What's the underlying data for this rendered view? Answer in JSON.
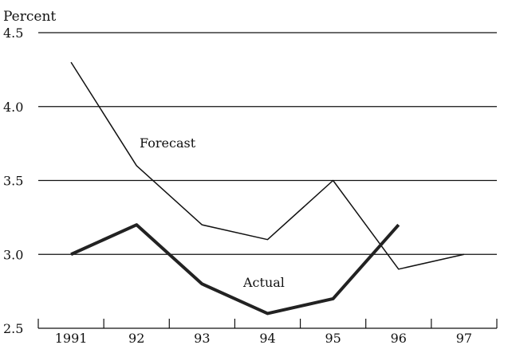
{
  "chart_data": {
    "type": "line",
    "ylabel": "Percent",
    "xlabel": "",
    "title": "",
    "categories": [
      "1991",
      "92",
      "93",
      "94",
      "95",
      "96",
      "97"
    ],
    "ylim": [
      2.5,
      4.5
    ],
    "yticks": [
      "2.5",
      "3.0",
      "3.5",
      "4.0",
      "4.5"
    ],
    "grid": true,
    "series": [
      {
        "name": "Forecast",
        "values": [
          4.3,
          3.6,
          3.2,
          3.1,
          3.5,
          2.9,
          3.0
        ],
        "color": "#111111",
        "style": "thin"
      },
      {
        "name": "Actual",
        "values": [
          3.0,
          3.2,
          2.8,
          2.6,
          2.7,
          3.2,
          null
        ],
        "color": "#222222",
        "style": "thick"
      }
    ]
  }
}
